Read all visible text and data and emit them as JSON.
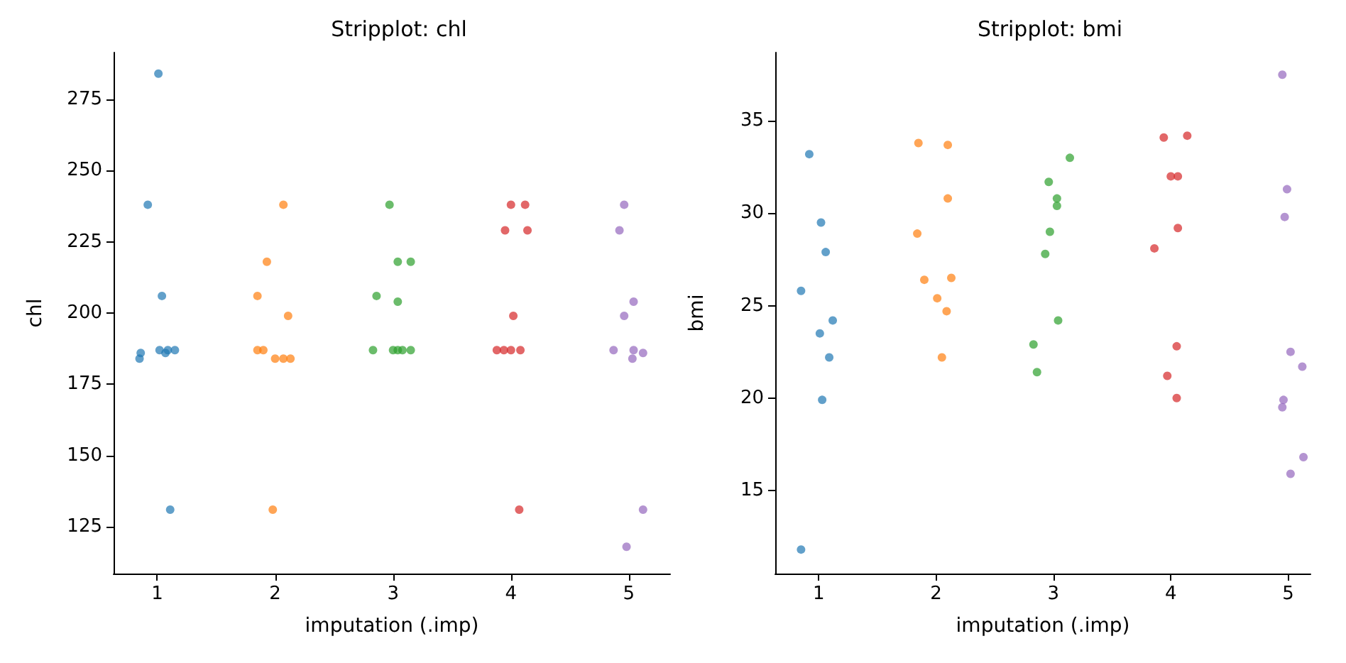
{
  "chart_data": [
    {
      "type": "scatter",
      "title": "Stripplot: chl",
      "xlabel": "imputation (.imp)",
      "ylabel": "chl",
      "xlim": [
        0.63,
        5.35
      ],
      "xticks": [
        1,
        2,
        3,
        4,
        5
      ],
      "ylim": [
        108.6,
        291.4
      ],
      "yticks": [
        125,
        150,
        175,
        200,
        225,
        250,
        275
      ],
      "grid": false,
      "marker": "circle",
      "series": [
        {
          "color": "#1f77b4",
          "x": [
            1.01,
            0.92,
            1.04,
            0.86,
            0.85,
            1.02,
            1.07,
            1.09,
            1.15,
            1.11
          ],
          "values": [
            284,
            238,
            206,
            186,
            184,
            187,
            186,
            187,
            187,
            131
          ]
        },
        {
          "color": "#ff7f0e",
          "x": [
            2.07,
            1.93,
            1.85,
            2.11,
            1.85,
            1.9,
            2.0,
            2.07,
            2.13,
            1.98
          ],
          "values": [
            238,
            218,
            206,
            199,
            187,
            187,
            184,
            184,
            184,
            131
          ]
        },
        {
          "color": "#2ca02c",
          "x": [
            2.97,
            3.04,
            3.15,
            2.86,
            3.04,
            2.83,
            3.0,
            3.04,
            3.08,
            3.15
          ],
          "values": [
            238,
            218,
            218,
            206,
            204,
            187,
            187,
            187,
            187,
            187
          ]
        },
        {
          "color": "#d62728",
          "x": [
            4.0,
            4.12,
            3.95,
            4.14,
            4.02,
            3.88,
            3.94,
            4.0,
            4.08,
            4.07
          ],
          "values": [
            238,
            238,
            229,
            229,
            199,
            187,
            187,
            187,
            187,
            131
          ]
        },
        {
          "color": "#9467bd",
          "x": [
            4.96,
            4.92,
            5.04,
            4.96,
            4.87,
            5.04,
            5.12,
            5.03,
            5.12,
            4.98
          ],
          "values": [
            238,
            229,
            204,
            199,
            187,
            187,
            186,
            184,
            131,
            118
          ]
        }
      ]
    },
    {
      "type": "scatter",
      "title": "Stripplot: bmi",
      "xlabel": "imputation (.imp)",
      "ylabel": "bmi",
      "xlim": [
        0.63,
        5.19
      ],
      "xticks": [
        1,
        2,
        3,
        4,
        5
      ],
      "ylim": [
        10.5,
        38.7
      ],
      "yticks": [
        15,
        20,
        25,
        30,
        35
      ],
      "grid": false,
      "marker": "circle",
      "series": [
        {
          "color": "#1f77b4",
          "x": [
            0.92,
            1.02,
            1.06,
            0.85,
            1.12,
            1.01,
            1.09,
            1.03,
            0.85
          ],
          "values": [
            33.2,
            29.5,
            27.9,
            25.8,
            24.2,
            23.5,
            22.2,
            19.9,
            11.8
          ]
        },
        {
          "color": "#ff7f0e",
          "x": [
            1.85,
            2.1,
            2.1,
            1.84,
            1.9,
            2.13,
            2.01,
            2.09,
            2.05
          ],
          "values": [
            33.8,
            33.7,
            30.8,
            28.9,
            26.4,
            26.5,
            25.4,
            24.7,
            22.2
          ]
        },
        {
          "color": "#2ca02c",
          "x": [
            2.96,
            3.03,
            3.03,
            3.14,
            2.97,
            2.93,
            3.04,
            2.83,
            2.86
          ],
          "values": [
            31.7,
            30.8,
            30.4,
            33.0,
            29.0,
            27.8,
            24.2,
            22.9,
            21.4
          ]
        },
        {
          "color": "#d62728",
          "x": [
            3.94,
            4.14,
            4.0,
            4.06,
            4.06,
            3.86,
            4.05,
            3.97,
            4.05
          ],
          "values": [
            34.1,
            34.2,
            32.0,
            32.0,
            29.2,
            28.1,
            22.8,
            21.2,
            20.0
          ]
        },
        {
          "color": "#9467bd",
          "x": [
            4.95,
            4.99,
            4.97,
            5.02,
            5.12,
            4.96,
            4.95,
            5.13,
            5.02
          ],
          "values": [
            37.5,
            31.3,
            29.8,
            22.5,
            21.7,
            19.9,
            19.5,
            16.8,
            15.9
          ]
        }
      ]
    }
  ]
}
